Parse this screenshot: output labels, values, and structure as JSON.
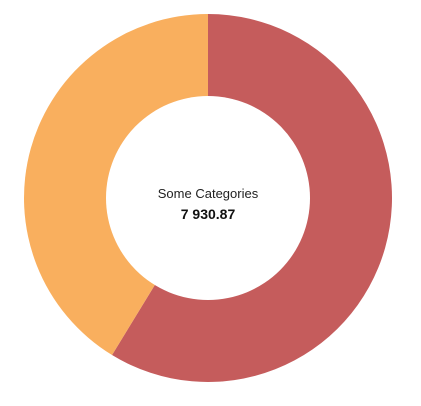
{
  "chart_data": {
    "type": "pie",
    "variant": "donut",
    "center_label": "Some Categories",
    "center_value": "7 930.87",
    "total": 7930.87,
    "slices": [
      {
        "value": 4658.0,
        "color": "#C55C5C"
      },
      {
        "value": 3272.87,
        "color": "#F9AF5E"
      }
    ],
    "start": "top",
    "direction": "clockwise",
    "legend": "none"
  },
  "colors": {
    "background": "#FFFFFF",
    "hole": "#FFFFFF"
  }
}
